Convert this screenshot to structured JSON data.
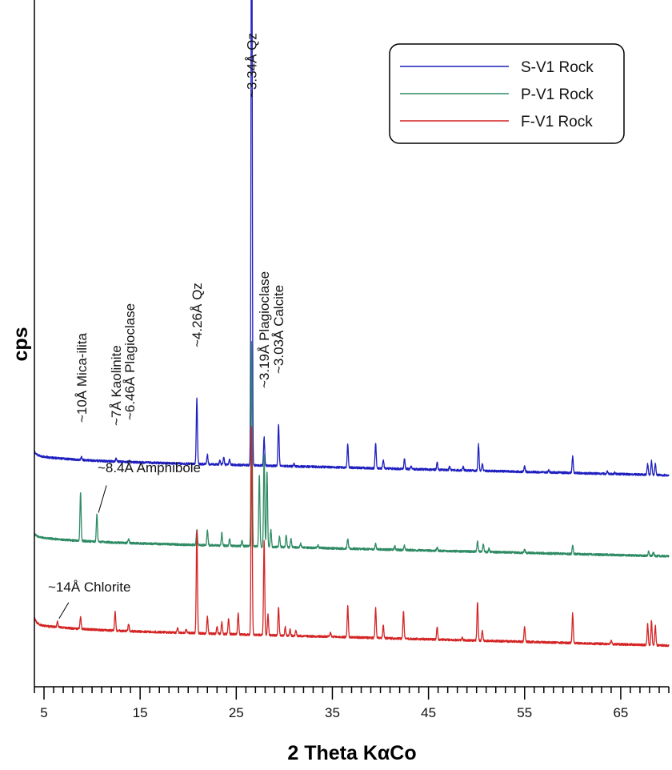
{
  "chart_data": {
    "type": "line",
    "xlabel": "2 Theta KαCo",
    "ylabel": "cps",
    "xlim": [
      4,
      70
    ],
    "x_ticks": [
      "5",
      "15",
      "25",
      "35",
      "45",
      "55",
      "65"
    ],
    "x_tick_values": [
      5,
      15,
      25,
      35,
      45,
      55,
      65
    ],
    "minor_tick_step": 1,
    "y_range": [
      0,
      1000
    ],
    "grid": false,
    "legend_position": "top-right",
    "series": [
      {
        "name": "S-V1 Rock",
        "color": "#1f1fbf",
        "baseline_start": 330,
        "baseline_end": 308,
        "start_spike": 6,
        "peaks": [
          [
            8.9,
            4
          ],
          [
            12.5,
            4
          ],
          [
            13.9,
            2
          ],
          [
            20.9,
            95
          ],
          [
            22.0,
            14
          ],
          [
            23.3,
            6
          ],
          [
            23.7,
            10
          ],
          [
            24.3,
            8
          ],
          [
            26.6,
            990
          ],
          [
            27.9,
            41
          ],
          [
            29.4,
            60
          ],
          [
            31.0,
            4
          ],
          [
            36.6,
            34
          ],
          [
            39.5,
            36
          ],
          [
            40.3,
            12
          ],
          [
            42.5,
            15
          ],
          [
            43.2,
            4
          ],
          [
            45.9,
            10
          ],
          [
            47.2,
            5
          ],
          [
            48.6,
            5
          ],
          [
            50.2,
            38
          ],
          [
            50.6,
            10
          ],
          [
            55.0,
            8
          ],
          [
            57.5,
            3
          ],
          [
            60.0,
            24
          ],
          [
            63.6,
            3
          ],
          [
            64.4,
            2
          ],
          [
            67.8,
            16
          ],
          [
            68.2,
            20
          ],
          [
            68.6,
            16
          ]
        ]
      },
      {
        "name": "P-V1 Rock",
        "color": "#2e8b64",
        "baseline_start": 212,
        "baseline_end": 190,
        "start_spike": 4,
        "peaks": [
          [
            8.8,
            70
          ],
          [
            10.5,
            40
          ],
          [
            13.8,
            6
          ],
          [
            20.9,
            22
          ],
          [
            22.0,
            22
          ],
          [
            23.5,
            18
          ],
          [
            24.3,
            10
          ],
          [
            25.6,
            8
          ],
          [
            26.6,
            300
          ],
          [
            27.4,
            105
          ],
          [
            27.9,
            135
          ],
          [
            28.2,
            110
          ],
          [
            28.6,
            25
          ],
          [
            29.5,
            15
          ],
          [
            30.2,
            18
          ],
          [
            30.7,
            12
          ],
          [
            31.7,
            6
          ],
          [
            33.5,
            4
          ],
          [
            36.6,
            14
          ],
          [
            39.5,
            8
          ],
          [
            41.5,
            5
          ],
          [
            42.5,
            6
          ],
          [
            45.9,
            5
          ],
          [
            50.1,
            15
          ],
          [
            50.7,
            12
          ],
          [
            51.3,
            5
          ],
          [
            55.0,
            5
          ],
          [
            60.0,
            13
          ],
          [
            67.9,
            6
          ],
          [
            68.4,
            5
          ]
        ]
      },
      {
        "name": "F-V1 Rock",
        "color": "#d42424",
        "baseline_start": 84,
        "baseline_end": 60,
        "start_spike": 10,
        "peaks": [
          [
            6.4,
            8
          ],
          [
            8.8,
            18
          ],
          [
            12.4,
            27
          ],
          [
            13.8,
            10
          ],
          [
            18.9,
            7
          ],
          [
            19.8,
            5
          ],
          [
            20.9,
            150
          ],
          [
            22.0,
            25
          ],
          [
            23.0,
            10
          ],
          [
            23.5,
            17
          ],
          [
            24.2,
            22
          ],
          [
            25.2,
            30
          ],
          [
            26.6,
            305
          ],
          [
            27.9,
            137
          ],
          [
            28.3,
            30
          ],
          [
            29.4,
            40
          ],
          [
            30.1,
            12
          ],
          [
            30.6,
            9
          ],
          [
            31.2,
            7
          ],
          [
            34.8,
            6
          ],
          [
            36.6,
            45
          ],
          [
            39.5,
            43
          ],
          [
            40.3,
            18
          ],
          [
            42.4,
            40
          ],
          [
            45.9,
            18
          ],
          [
            48.5,
            4
          ],
          [
            50.1,
            55
          ],
          [
            50.6,
            14
          ],
          [
            55.0,
            23
          ],
          [
            60.0,
            43
          ],
          [
            64.0,
            5
          ],
          [
            67.8,
            30
          ],
          [
            68.2,
            36
          ],
          [
            68.6,
            29
          ]
        ]
      }
    ],
    "annotations": [
      {
        "text": "~3.34Å Qz",
        "x": 26.6,
        "series": 0
      },
      {
        "text": "~4.26Å Qz",
        "x": 20.9,
        "series": 0
      },
      {
        "text": "~10Å Mica-ilita",
        "x": 8.9,
        "series": 0
      },
      {
        "text": "~7Å Kaolinite",
        "x": 12.5,
        "series": 0
      },
      {
        "text": "~6.46Å Plagioclase",
        "x": 13.9,
        "series": 0
      },
      {
        "text": "~3.19Å Plagioclase",
        "x": 27.9,
        "series": 0
      },
      {
        "text": "~3.03Å Calcite",
        "x": 29.4,
        "series": 0
      },
      {
        "text": "~8.4Å Amphibole",
        "x": 10.5,
        "series": 1
      },
      {
        "text": "~14Å Chlorite",
        "x": 6.4,
        "series": 2
      }
    ]
  }
}
